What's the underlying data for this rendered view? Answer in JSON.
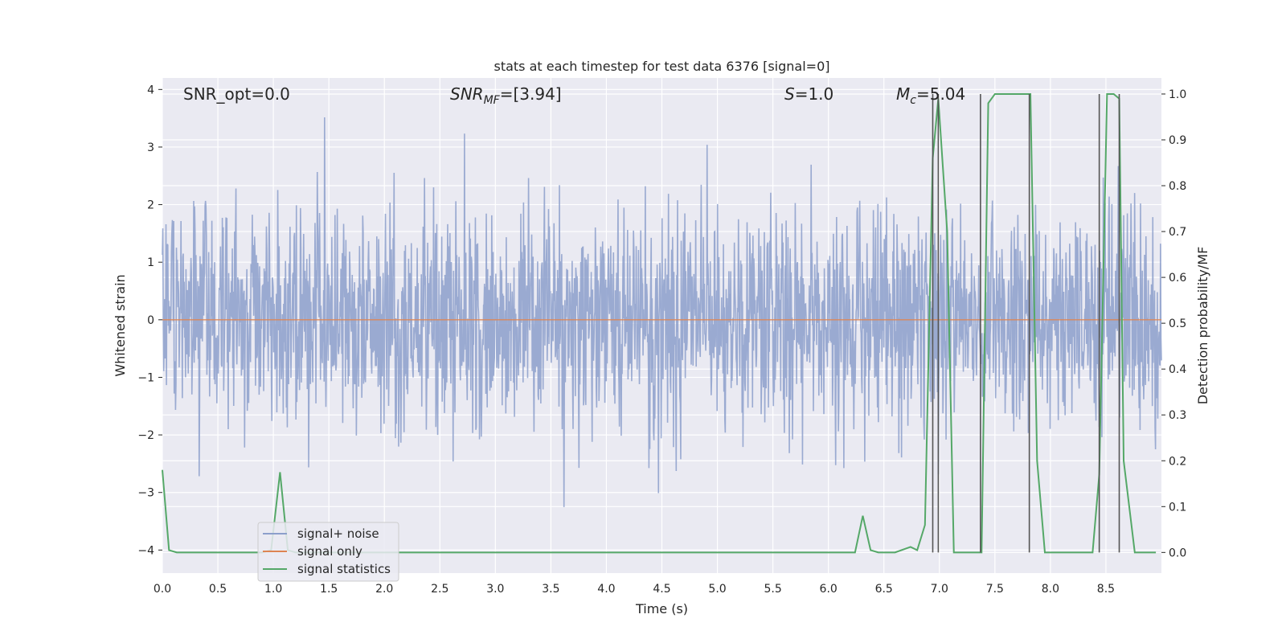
{
  "chart_data": {
    "type": "line",
    "title": "stats at each timestep for test data 6376 [signal=0]",
    "xlabel": "Time (s)",
    "ylabel_left": "Whitened strain",
    "ylabel_right": "Detection probability/MF",
    "xlim": [
      0.0,
      9.0
    ],
    "ylim_left": [
      -4.4,
      4.2
    ],
    "ylim_right": [
      -0.045,
      1.035
    ],
    "grid": true,
    "legend_position": "lower-left",
    "x_ticks": [
      "0.0",
      "0.5",
      "1.0",
      "1.5",
      "2.0",
      "2.5",
      "3.0",
      "3.5",
      "4.0",
      "4.5",
      "5.0",
      "5.5",
      "6.0",
      "6.5",
      "7.0",
      "7.5",
      "8.0",
      "8.5"
    ],
    "y_ticks_left": [
      "4",
      "3",
      "2",
      "1",
      "0",
      "−1",
      "−2",
      "−3",
      "−4"
    ],
    "y_ticks_right": [
      "1.0",
      "0.9",
      "0.8",
      "0.7",
      "0.6",
      "0.5",
      "0.4",
      "0.3",
      "0.2",
      "0.1",
      "0.0"
    ],
    "annotations": {
      "snr_opt": "SNR_opt=0.0",
      "snr_mf_main": "SNR",
      "snr_mf_sub": "MF",
      "snr_mf_value": "=[3.94]",
      "s_var": "S",
      "s_value": "=1.0",
      "mc_var": "M",
      "mc_sub": "c",
      "mc_value": "=5.04"
    },
    "legend": [
      "signal+ noise",
      "signal only",
      "signal statistics"
    ],
    "colors": {
      "signal_noise": "#8c9fcb",
      "signal_only": "#dd8452",
      "signal_statistics": "#55a868",
      "detection_marker": "#555555",
      "plot_background": "#eaeaf2",
      "grid": "#ffffff"
    },
    "series": [
      {
        "name": "signal+ noise",
        "axis": "left",
        "note": "noise-like whitened strain, amplitude mostly within ±2, peaks up to about 3.8 and down to about -3.6",
        "envelope": {
          "typical_abs": 1.7,
          "max": 3.8,
          "min": -3.65
        }
      },
      {
        "name": "signal only",
        "axis": "left",
        "x": [
          0.0,
          9.0
        ],
        "y": [
          0.0,
          0.0
        ]
      },
      {
        "name": "signal statistics",
        "axis": "right",
        "x": [
          0.0,
          0.06,
          0.13,
          0.9,
          0.98,
          1.06,
          1.13,
          1.2,
          6.24,
          6.31,
          6.38,
          6.45,
          6.6,
          6.74,
          6.8,
          6.87,
          6.94,
          6.99,
          7.07,
          7.13,
          7.38,
          7.44,
          7.5,
          7.82,
          7.88,
          7.95,
          8.38,
          8.44,
          8.51,
          8.57,
          8.62,
          8.66,
          8.76,
          8.95
        ],
        "y": [
          0.18,
          0.005,
          0.0,
          0.0,
          0.005,
          0.175,
          0.005,
          0.0,
          0.0,
          0.08,
          0.005,
          0.0,
          0.0,
          0.012,
          0.005,
          0.06,
          0.86,
          0.99,
          0.7,
          0.0,
          0.0,
          0.98,
          1.0,
          1.0,
          0.2,
          0.0,
          0.0,
          0.17,
          1.0,
          1.0,
          0.99,
          0.2,
          0.0,
          0.0
        ]
      },
      {
        "name": "detection markers",
        "axis": "right",
        "x": [
          6.94,
          6.99,
          7.37,
          7.81,
          8.44,
          8.62
        ],
        "y_from": 0.0,
        "y_to": 1.0
      }
    ]
  }
}
